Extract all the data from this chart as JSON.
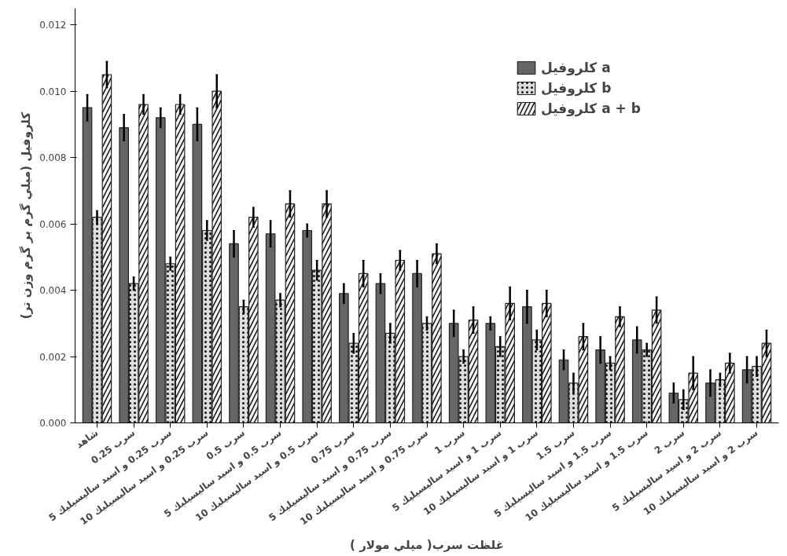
{
  "chart_data": {
    "type": "bar",
    "xlabel": "غلظت سرب( ميلي مولار )",
    "ylabel": "كلروفيل (ميلي گرم بر گرم وزن تر)",
    "categories": [
      "شاهد",
      "سرب 0.25",
      "سرب 0.25 و اسيد ساليسيليك 5",
      "سرب 0.25 و اسيد ساليسيليك 10",
      "سرب 0.5",
      "سرب 0.5 و اسيد ساليسيليك 5",
      "سرب 0.5 و اسيد ساليسيليك 10",
      "سرب 0.75",
      "سرب 0.75 و اسيد ساليسيليك 5",
      "سرب 0.75 و اسيد ساليسيليك 10",
      "سرب 1",
      "سرب 1 و اسيد ساليسيليك 5",
      "سرب 1 و اسيد ساليسيليك 10",
      "سرب 1.5",
      "سرب 1.5 و اسيد ساليسيليك 5",
      "سرب 1.5 و اسيد ساليسيليك 10",
      "سرب 2",
      "سرب 2 و اسيد ساليسيليك 5",
      "سرب 2 و اسيد ساليسيليك 10"
    ],
    "series": [
      {
        "name": "كلروفيل a",
        "color": "#666666",
        "values": [
          0.0095,
          0.0089,
          0.0092,
          0.009,
          0.0054,
          0.0057,
          0.0058,
          0.0039,
          0.0042,
          0.0045,
          0.003,
          0.003,
          0.0035,
          0.0019,
          0.0022,
          0.0025,
          0.0009,
          0.0012,
          0.0016
        ],
        "errors": [
          0.0004,
          0.0004,
          0.0003,
          0.0005,
          0.0004,
          0.0004,
          0.0002,
          0.0003,
          0.0003,
          0.0004,
          0.0004,
          0.0002,
          0.0005,
          0.0003,
          0.0004,
          0.0004,
          0.0003,
          0.0004,
          0.0004
        ]
      },
      {
        "name": "كلروفيل b",
        "color": "#dddddd",
        "values": [
          0.0062,
          0.0042,
          0.0048,
          0.0058,
          0.0035,
          0.0037,
          0.0046,
          0.0024,
          0.0027,
          0.003,
          0.002,
          0.0023,
          0.0025,
          0.0012,
          0.0018,
          0.0022,
          0.0007,
          0.0013,
          0.0017
        ],
        "errors": [
          0.0002,
          0.0002,
          0.0002,
          0.0003,
          0.0002,
          0.0002,
          0.0003,
          0.0003,
          0.0003,
          0.0002,
          0.0002,
          0.0003,
          0.0003,
          0.0003,
          0.0002,
          0.0002,
          0.0003,
          0.0002,
          0.0003
        ]
      },
      {
        "name": "كلروفيل a + b",
        "color": "#f2f2f2",
        "values": [
          0.0105,
          0.0096,
          0.0096,
          0.01,
          0.0062,
          0.0066,
          0.0066,
          0.0045,
          0.0049,
          0.0051,
          0.0031,
          0.0036,
          0.0036,
          0.0026,
          0.0032,
          0.0034,
          0.0015,
          0.0018,
          0.0024
        ],
        "errors": [
          0.0004,
          0.0003,
          0.0003,
          0.0005,
          0.0003,
          0.0004,
          0.0004,
          0.0004,
          0.0003,
          0.0003,
          0.0004,
          0.0005,
          0.0004,
          0.0004,
          0.0003,
          0.0004,
          0.0005,
          0.0003,
          0.0004
        ]
      }
    ],
    "ylim": [
      0,
      0.0125
    ],
    "yticks": [
      {
        "value": 0,
        "label": "0.000"
      },
      {
        "value": 0.002,
        "label": "0.002"
      },
      {
        "value": 0.004,
        "label": "0.004"
      },
      {
        "value": 0.006,
        "label": "0.006"
      },
      {
        "value": 0.008,
        "label": "0.008"
      },
      {
        "value": 0.01,
        "label": "0.010"
      },
      {
        "value": 0.012,
        "label": "0.012"
      }
    ],
    "grid": false,
    "legend": "top right"
  }
}
